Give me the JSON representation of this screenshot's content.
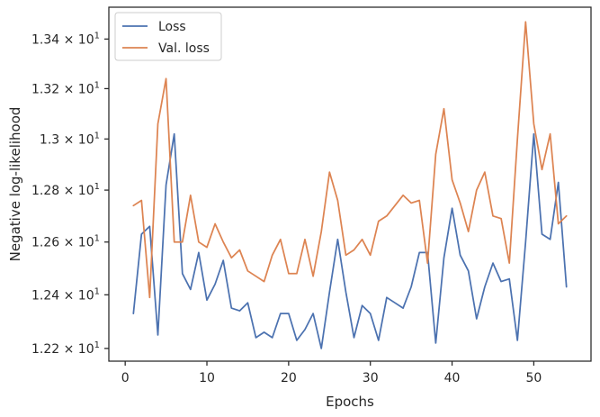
{
  "chart_data": {
    "type": "line",
    "title": "",
    "xlabel": "Epochs",
    "ylabel": "Negative log-likelihood",
    "y_scale": "log",
    "xlim": [
      -2,
      57
    ],
    "ylim": [
      12.153,
      13.53
    ],
    "grid": false,
    "legend_position": "top-left",
    "x_ticks": [
      0,
      10,
      20,
      30,
      40,
      50
    ],
    "y_ticks": [
      {
        "value": 12.2,
        "mantissa": "1.22",
        "exponent": "1"
      },
      {
        "value": 12.4,
        "mantissa": "1.24",
        "exponent": "1"
      },
      {
        "value": 12.6,
        "mantissa": "1.26",
        "exponent": "1"
      },
      {
        "value": 12.8,
        "mantissa": "1.28",
        "exponent": "1"
      },
      {
        "value": 13.0,
        "mantissa": "1.3",
        "exponent": "1"
      },
      {
        "value": 13.2,
        "mantissa": "1.32",
        "exponent": "1"
      },
      {
        "value": 13.4,
        "mantissa": "1.34",
        "exponent": "1"
      }
    ],
    "x": [
      1,
      2,
      3,
      4,
      5,
      6,
      7,
      8,
      9,
      10,
      11,
      12,
      13,
      14,
      15,
      16,
      17,
      18,
      19,
      20,
      21,
      22,
      23,
      24,
      25,
      26,
      27,
      28,
      29,
      30,
      31,
      32,
      33,
      34,
      35,
      36,
      37,
      38,
      39,
      40,
      41,
      42,
      43,
      44,
      45,
      46,
      47,
      48,
      49,
      50,
      51,
      52,
      53,
      54
    ],
    "series": [
      {
        "name": "Loss",
        "color": "#4c72b0",
        "values": [
          12.33,
          12.63,
          12.66,
          12.25,
          12.82,
          13.02,
          12.48,
          12.42,
          12.56,
          12.38,
          12.44,
          12.53,
          12.35,
          12.34,
          12.37,
          12.24,
          12.26,
          12.24,
          12.33,
          12.33,
          12.23,
          12.27,
          12.33,
          12.2,
          12.41,
          12.61,
          12.41,
          12.24,
          12.36,
          12.33,
          12.23,
          12.39,
          12.37,
          12.35,
          12.43,
          12.56,
          12.56,
          12.22,
          12.54,
          12.73,
          12.55,
          12.49,
          12.31,
          12.43,
          12.52,
          12.45,
          12.46,
          12.23,
          12.6,
          13.02,
          12.63,
          12.61,
          12.83,
          12.43
        ]
      },
      {
        "name": "Val. loss",
        "color": "#dd8452",
        "values": [
          12.74,
          12.76,
          12.39,
          13.06,
          13.24,
          12.6,
          12.6,
          12.78,
          12.6,
          12.58,
          12.67,
          12.6,
          12.54,
          12.57,
          12.49,
          12.47,
          12.45,
          12.55,
          12.61,
          12.48,
          12.48,
          12.61,
          12.47,
          12.64,
          12.87,
          12.76,
          12.55,
          12.57,
          12.61,
          12.55,
          12.68,
          12.7,
          12.74,
          12.78,
          12.75,
          12.76,
          12.52,
          12.94,
          13.12,
          12.84,
          12.75,
          12.64,
          12.8,
          12.87,
          12.7,
          12.69,
          12.52,
          13.0,
          13.47,
          13.06,
          12.88,
          13.02,
          12.67,
          12.7
        ]
      }
    ]
  }
}
